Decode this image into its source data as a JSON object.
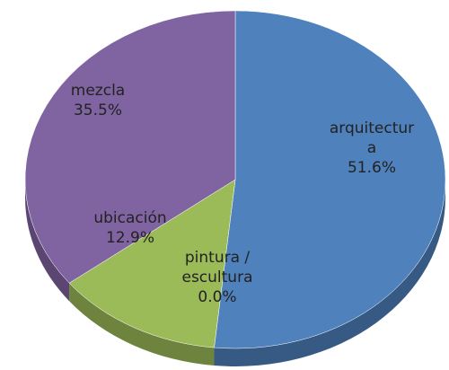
{
  "chart_data": {
    "type": "pie",
    "categories": [
      "arquitectura",
      "pintura / escultura",
      "ubicación",
      "mezcla"
    ],
    "values": [
      51.6,
      0.0,
      12.9,
      35.5
    ],
    "value_labels": [
      "51.6%",
      "0.0%",
      "12.9%",
      "35.5%"
    ],
    "colors": [
      "#4f81bd",
      "#c0504d",
      "#9bbb59",
      "#8064a2"
    ]
  }
}
